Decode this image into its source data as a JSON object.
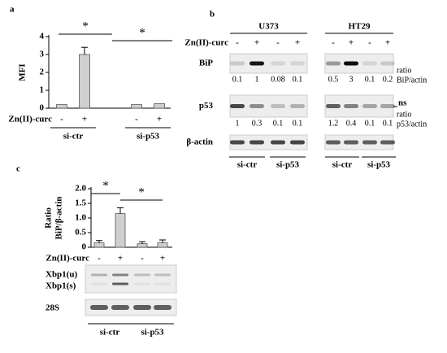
{
  "figure": {
    "panel_labels": [
      "a",
      "b",
      "c"
    ]
  },
  "chart_data": [
    {
      "type": "bar",
      "ylabel": [
        "MFI"
      ],
      "row_label": "Zn(II)-curc",
      "categories": [
        "-",
        "+",
        "-",
        "+"
      ],
      "groups": [
        "si-ctr",
        "si-p53"
      ],
      "values": [
        0.2,
        3.0,
        0.2,
        0.25
      ],
      "errors": [
        null,
        0.4,
        null,
        null
      ],
      "significance": [
        "*",
        "*"
      ],
      "color": "#cfcfcf",
      "ylim": [
        0,
        4
      ],
      "yticks": [
        0,
        1,
        2,
        3,
        4
      ],
      "grid": false
    },
    {
      "type": "bar",
      "ylabel": [
        "Ratio",
        "BiP/β-actin"
      ],
      "row_label": "Zn(II)-curc",
      "categories": [
        "-",
        "+",
        "-",
        "+"
      ],
      "groups": [
        "si-ctr",
        "si-p53"
      ],
      "values": [
        0.15,
        1.15,
        0.12,
        0.15
      ],
      "errors": [
        0.08,
        0.2,
        0.07,
        0.1
      ],
      "significance": [
        "*",
        "*"
      ],
      "color": "#cfcfcf",
      "ylim": [
        0,
        2
      ],
      "yticks": [
        0,
        0.5,
        {
          "value": 1,
          "label": "1.0"
        },
        1.5,
        {
          "value": 2,
          "label": "2.0"
        }
      ],
      "grid": false
    }
  ],
  "blot_b": {
    "cell_lines": [
      "U373",
      "HT29"
    ],
    "row_label": "Zn(II)-curc",
    "treatments": [
      "-",
      "+",
      "-",
      "+",
      "-",
      "+",
      "-",
      "+"
    ],
    "rows": [
      {
        "label": "BiP",
        "ratios": [
          0.1,
          1,
          0.08,
          0.1,
          0.5,
          3,
          0.1,
          0.2
        ],
        "ratio_label": [
          "ratio",
          "BiP/actin"
        ]
      },
      {
        "label": "p53",
        "ratios": [
          1,
          0.3,
          0.1,
          0.1,
          1.2,
          0.4,
          0.1,
          0.1
        ],
        "ratio_label": [
          "ratio",
          "p53/actin"
        ],
        "note": "ns"
      },
      {
        "label": "β-actin"
      }
    ],
    "groups": [
      "si-ctr",
      "si-p53",
      "si-ctr",
      "si-p53"
    ]
  },
  "blot_c": {
    "bands": [
      "Xbp1(u)",
      "Xbp1(s)",
      "28S"
    ]
  }
}
